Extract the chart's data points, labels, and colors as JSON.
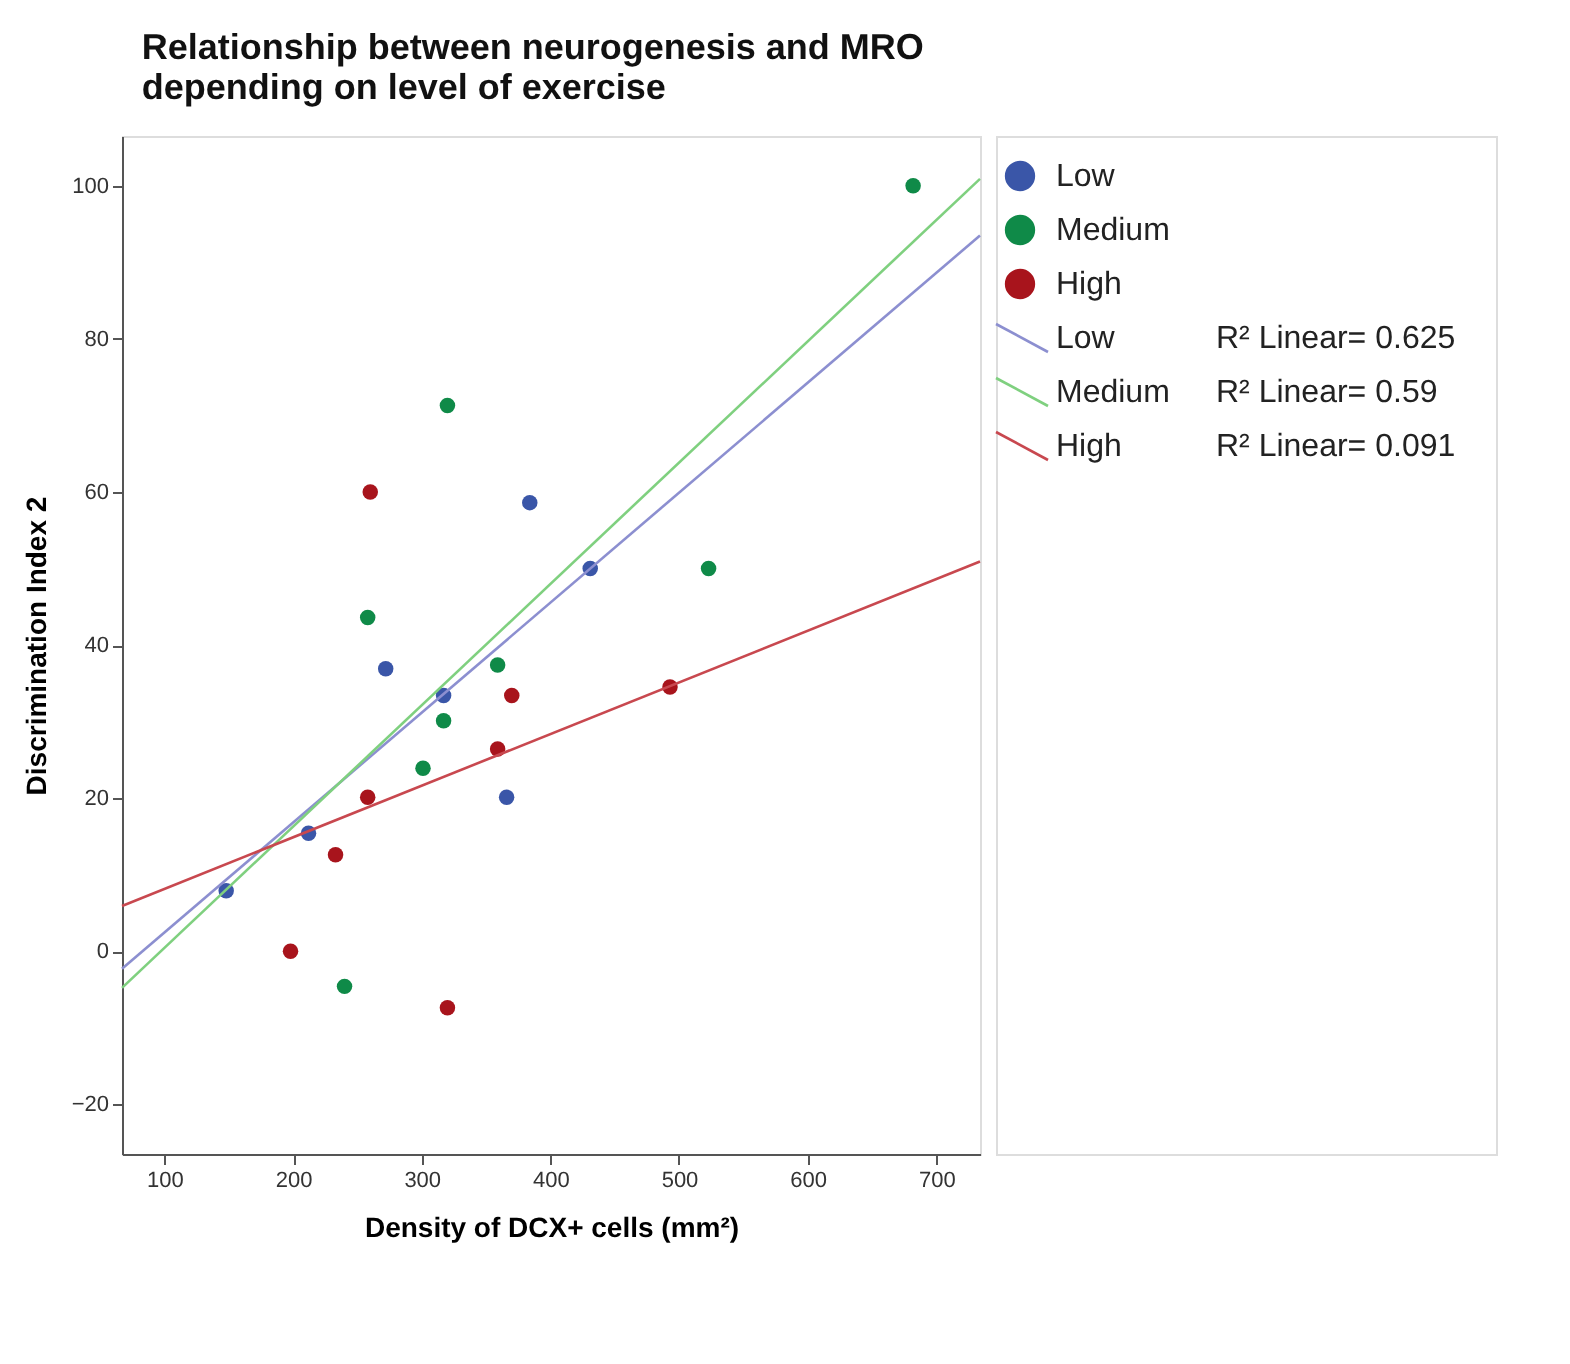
{
  "chart_data": {
    "type": "scatter",
    "title": "Relationship between neurogenesis and MRO\ndepending on level of exercise",
    "xlabel": "Density of DCX+ cells (mm²)",
    "ylabel": "Discrimination Index 2",
    "xlim": [
      67,
      734
    ],
    "ylim": [
      -26.5,
      106.5
    ],
    "xticks": [
      100,
      200,
      300,
      400,
      500,
      600,
      700
    ],
    "yticks": [
      -20,
      0,
      20,
      40,
      60,
      80,
      100
    ],
    "grid": false,
    "legend": "right",
    "marker": "circle",
    "series": [
      {
        "name": "Low",
        "color": "#3a56a8",
        "x": [
          148,
          212,
          272,
          317,
          366,
          384,
          431
        ],
        "values": [
          7.9,
          15.4,
          36.9,
          33.4,
          20.1,
          58.6,
          50
        ]
      },
      {
        "name": "Medium",
        "color": "#0f8a48",
        "x": [
          240,
          258,
          301,
          317,
          320,
          359,
          523,
          682
        ],
        "values": [
          -4.6,
          43.6,
          23.9,
          30.1,
          71.3,
          37.4,
          50,
          100
        ]
      },
      {
        "name": "High",
        "color": "#a8141c",
        "x": [
          198,
          233,
          258,
          260,
          320,
          359,
          370,
          493
        ],
        "values": [
          0,
          12.6,
          20.1,
          60,
          -7.4,
          26.4,
          33.4,
          34.5
        ]
      },
      {
        "name": "Low",
        "type": "line",
        "marker": "none",
        "color": "#8c8fd0",
        "x": [
          67,
          734
        ],
        "values": [
          -2.3,
          93.5
        ]
      },
      {
        "name": "Medium",
        "type": "line",
        "marker": "none",
        "color": "#7fd07f",
        "x": [
          67,
          734
        ],
        "values": [
          -4.8,
          100.9
        ]
      },
      {
        "name": "High",
        "type": "line",
        "marker": "none",
        "color": "#c8484f",
        "x": [
          67,
          734
        ],
        "values": [
          5.9,
          50.9
        ]
      }
    ],
    "annotations": [
      "R² Linear= 0.625",
      "R² Linear= 0.59",
      "R² Linear= 0.091"
    ]
  }
}
